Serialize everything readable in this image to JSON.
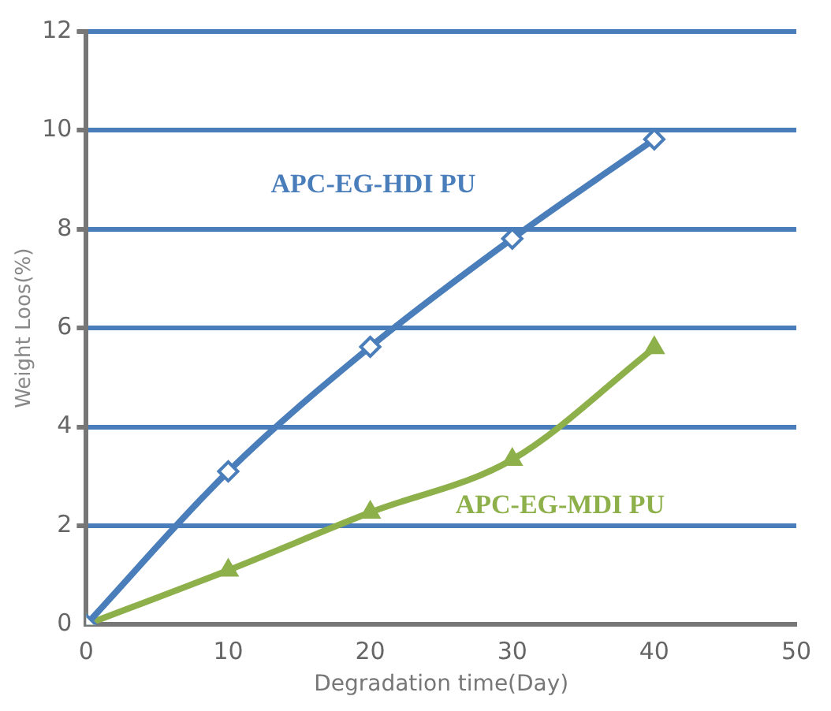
{
  "chart_data": {
    "type": "line",
    "xlabel": "Degradation time(Day)",
    "ylabel": "Weight Loos(%)",
    "x": [
      0,
      10,
      20,
      30,
      40
    ],
    "series": [
      {
        "name": "APC-EG-HDI PU",
        "color": "#4a7ebb",
        "values": [
          0,
          3.1,
          5.62,
          7.81,
          9.82
        ],
        "marker": "diamond"
      },
      {
        "name": "APC-EG-MDI PU",
        "color": "#8db04a",
        "values": [
          0,
          1.1,
          2.27,
          3.34,
          5.6
        ],
        "marker": "triangle"
      }
    ],
    "xlim": [
      0,
      50
    ],
    "xticks": [
      0,
      10,
      20,
      30,
      40,
      50
    ],
    "ylim": [
      0,
      12
    ],
    "yticks": [
      0,
      2,
      4,
      6,
      8,
      10,
      12
    ],
    "grid": "y",
    "legend": false
  }
}
